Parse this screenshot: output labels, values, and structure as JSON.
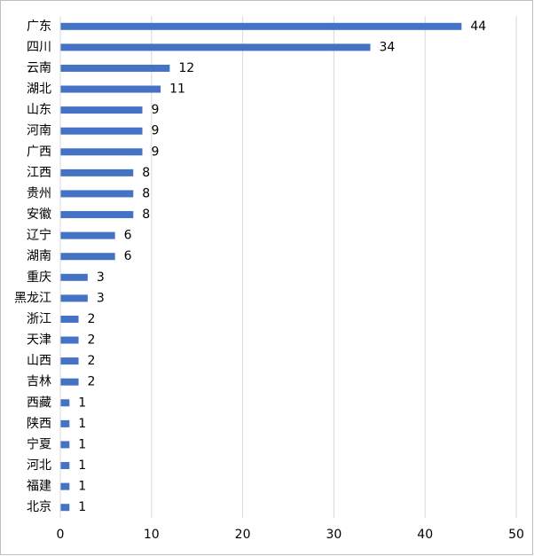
{
  "chart_data": {
    "type": "bar",
    "orientation": "horizontal",
    "categories": [
      "广东",
      "四川",
      "云南",
      "湖北",
      "山东",
      "河南",
      "广西",
      "江西",
      "贵州",
      "安徽",
      "辽宁",
      "湖南",
      "重庆",
      "黑龙江",
      "浙江",
      "天津",
      "山西",
      "吉林",
      "西藏",
      "陕西",
      "宁夏",
      "河北",
      "福建",
      "北京"
    ],
    "values": [
      44,
      34,
      12,
      11,
      9,
      9,
      9,
      8,
      8,
      8,
      6,
      6,
      3,
      3,
      2,
      2,
      2,
      2,
      1,
      1,
      1,
      1,
      1,
      1
    ],
    "color": "#4472c4",
    "xlim": [
      0,
      50
    ],
    "xticks": [
      0,
      10,
      20,
      30,
      40,
      50
    ],
    "grid": true,
    "data_labels": true
  }
}
